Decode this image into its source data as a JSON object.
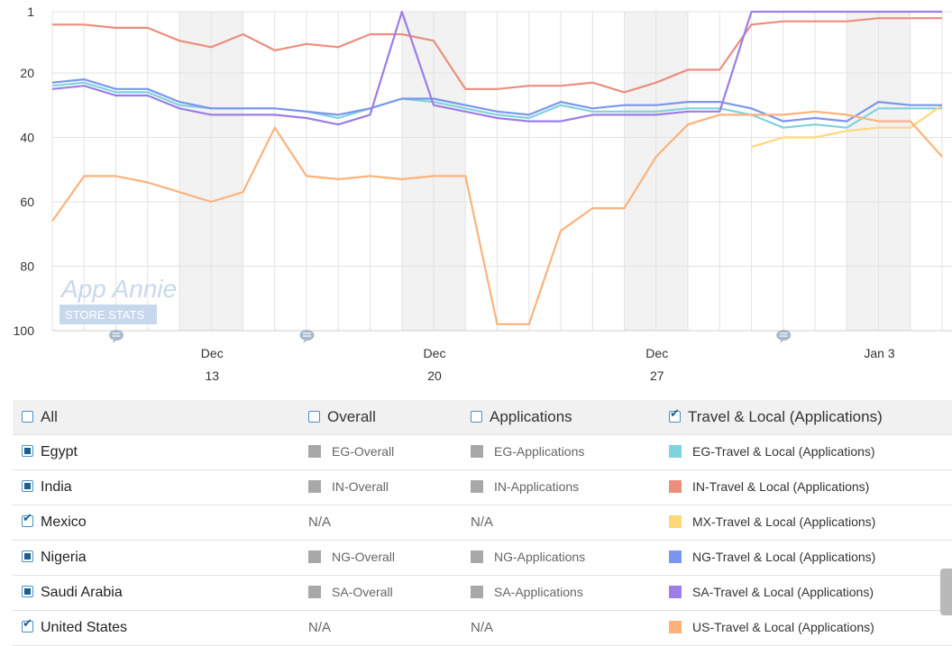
{
  "chart_data": {
    "type": "line",
    "y_axis": {
      "reversed": true,
      "range": [
        1,
        100
      ],
      "ticks": [
        1,
        20,
        40,
        60,
        80,
        100
      ]
    },
    "x_axis": {
      "points": 29,
      "tick_labels": [
        {
          "index": 5,
          "top": "Dec",
          "bottom": "13"
        },
        {
          "index": 12,
          "top": "Dec",
          "bottom": "20"
        },
        {
          "index": 19,
          "top": "Dec",
          "bottom": "27"
        },
        {
          "index": 26,
          "top": "Jan 3",
          "bottom": ""
        }
      ],
      "weekend_bands": [
        [
          4,
          6
        ],
        [
          11,
          13
        ],
        [
          18,
          20
        ],
        [
          25,
          27
        ]
      ],
      "annotation_markers": [
        2,
        8,
        23
      ]
    },
    "watermark": {
      "line1": "App Annie",
      "line2": "STORE STATS"
    },
    "series": [
      {
        "name": "EG-Travel & Local (Applications)",
        "color": "#7fd3dc",
        "values": [
          24,
          23,
          26,
          26,
          30,
          31,
          31,
          31,
          32,
          34,
          31,
          28,
          29,
          31,
          33,
          34,
          30,
          32,
          32,
          32,
          31,
          31,
          33,
          37,
          36,
          37,
          31,
          31,
          31
        ]
      },
      {
        "name": "IN-Travel & Local (Applications)",
        "color": "#ed8d7d",
        "values": [
          5,
          5,
          6,
          6,
          10,
          12,
          8,
          13,
          11,
          12,
          8,
          8,
          10,
          25,
          25,
          24,
          24,
          23,
          26,
          23,
          19,
          19,
          5,
          4,
          4,
          4,
          3,
          3,
          3
        ]
      },
      {
        "name": "MX-Travel & Local (Applications)",
        "color": "#fdd77a",
        "values": [
          null,
          null,
          null,
          null,
          null,
          null,
          null,
          null,
          null,
          null,
          null,
          null,
          null,
          null,
          null,
          null,
          null,
          null,
          null,
          null,
          null,
          null,
          43,
          40,
          40,
          38,
          37,
          37,
          30
        ]
      },
      {
        "name": "NG-Travel & Local (Applications)",
        "color": "#7b96ef",
        "values": [
          23,
          22,
          25,
          25,
          29,
          31,
          31,
          31,
          32,
          33,
          31,
          28,
          28,
          30,
          32,
          33,
          29,
          31,
          30,
          30,
          29,
          29,
          31,
          35,
          34,
          35,
          29,
          30,
          30
        ]
      },
      {
        "name": "SA-Travel & Local (Applications)",
        "color": "#9b7ee8",
        "values": [
          25,
          24,
          27,
          27,
          31,
          33,
          33,
          33,
          34,
          36,
          33,
          1,
          30,
          32,
          34,
          35,
          35,
          33,
          33,
          33,
          32,
          32,
          1,
          1,
          1,
          1,
          1,
          1,
          1
        ]
      },
      {
        "name": "US-Travel & Local (Applications)",
        "color": "#fdb27a",
        "values": [
          66,
          52,
          52,
          54,
          57,
          60,
          57,
          37,
          52,
          53,
          52,
          53,
          52,
          52,
          98,
          98,
          69,
          62,
          62,
          46,
          36,
          33,
          33,
          33,
          32,
          33,
          35,
          35,
          46
        ]
      }
    ]
  },
  "legend_table": {
    "headers": [
      "All",
      "Overall",
      "Applications",
      "Travel & Local (Applications)"
    ],
    "rows": [
      {
        "country": "Egypt",
        "overall": "EG-Overall",
        "applications": "EG-Applications",
        "travel": "EG-Travel & Local (Applications)",
        "color": "#7fd3dc",
        "checkbox": "filled"
      },
      {
        "country": "India",
        "overall": "IN-Overall",
        "applications": "IN-Applications",
        "travel": "IN-Travel & Local (Applications)",
        "color": "#ed8d7d",
        "checkbox": "filled"
      },
      {
        "country": "Mexico",
        "overall": "N/A",
        "applications": "N/A",
        "travel": "MX-Travel & Local (Applications)",
        "color": "#fdd77a",
        "checkbox": "checked"
      },
      {
        "country": "Nigeria",
        "overall": "NG-Overall",
        "applications": "NG-Applications",
        "travel": "NG-Travel & Local (Applications)",
        "color": "#7b96ef",
        "checkbox": "filled"
      },
      {
        "country": "Saudi Arabia",
        "overall": "SA-Overall",
        "applications": "SA-Applications",
        "travel": "SA-Travel & Local (Applications)",
        "color": "#9b7ee8",
        "checkbox": "filled"
      },
      {
        "country": "United States",
        "overall": "N/A",
        "applications": "N/A",
        "travel": "US-Travel & Local (Applications)",
        "color": "#fdb27a",
        "checkbox": "checked"
      }
    ]
  }
}
